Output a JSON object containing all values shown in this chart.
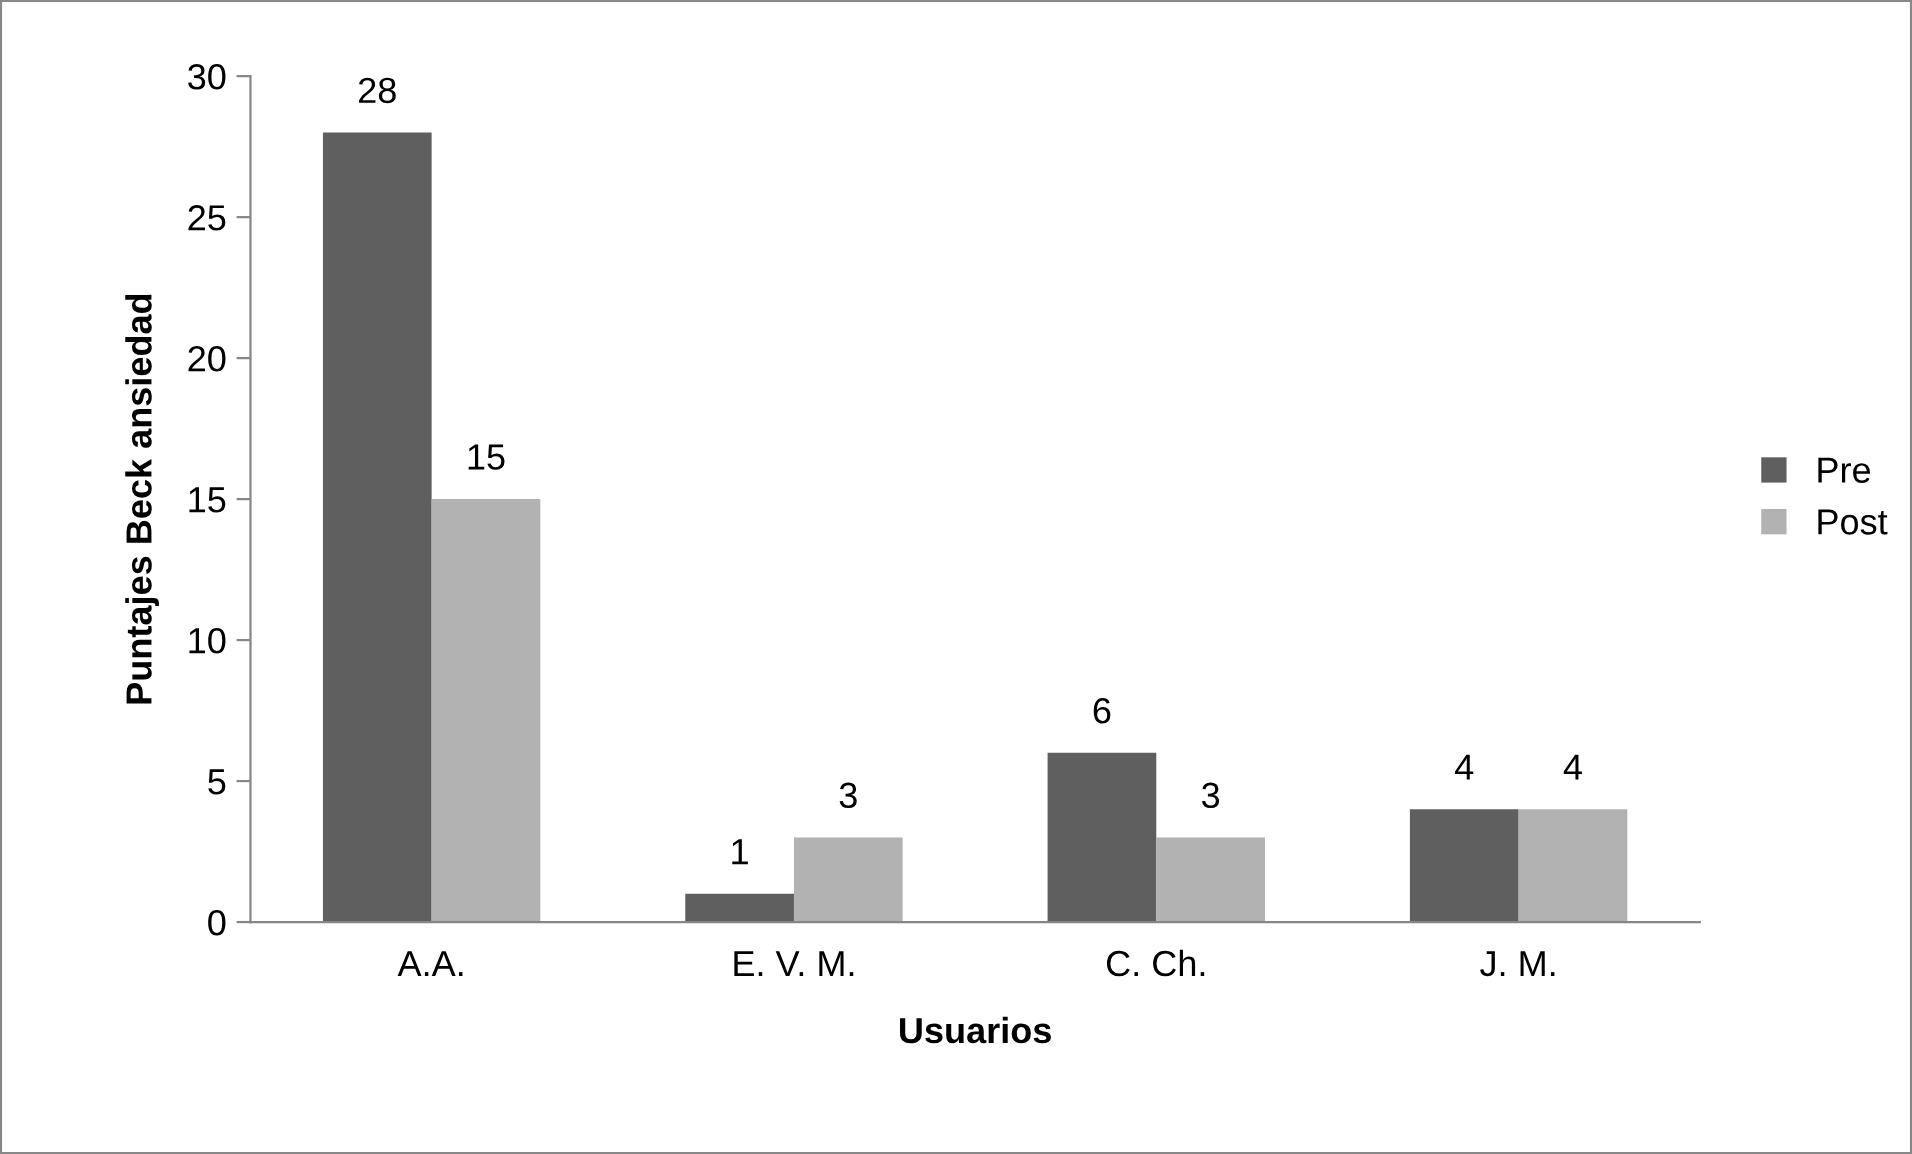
{
  "chart_data": {
    "type": "bar",
    "xlabel": "Usuarios",
    "ylabel": "Puntajes Beck ansiedad",
    "categories": [
      "A.A.",
      "E. V. M.",
      "C. Ch.",
      "J. M."
    ],
    "series": [
      {
        "name": "Pre",
        "color": "#5f5f5f",
        "values": [
          28,
          1,
          6,
          4
        ]
      },
      {
        "name": "Post",
        "color": "#b2b2b2",
        "values": [
          15,
          3,
          3,
          4
        ]
      }
    ],
    "ylim": [
      0,
      30
    ],
    "yticks": [
      0,
      5,
      10,
      15,
      20,
      25,
      30
    ],
    "grid": false,
    "legend": "right",
    "data_labels": true
  }
}
